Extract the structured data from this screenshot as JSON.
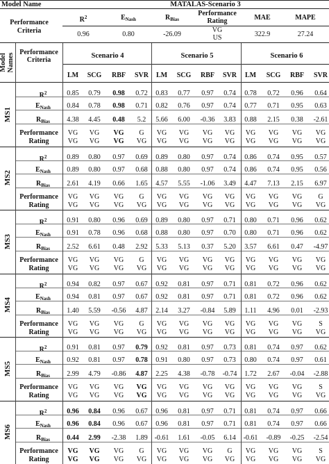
{
  "top": {
    "model_name_label": "Model Name",
    "model_name_value": "MATALAS-Scenario 3",
    "criteria_label_line1": "Performance",
    "criteria_label_line2": "Criteria",
    "headers": [
      {
        "main": "R",
        "sup": "2",
        "sub": ""
      },
      {
        "main": "E",
        "sup": "",
        "sub": "Nash"
      },
      {
        "main": "R",
        "sup": "",
        "sub": "Bias"
      },
      {
        "main": "Performance",
        "sup": "",
        "sub": "",
        "line2": "Rating"
      },
      {
        "main": "MAE",
        "sup": "",
        "sub": ""
      },
      {
        "main": "MAPE",
        "sup": "",
        "sub": ""
      }
    ],
    "values": [
      "0.96",
      "0.80",
      "-26.09",
      "VG",
      "322.9",
      "27.24"
    ],
    "rating_line2": "US"
  },
  "main_header": {
    "model_names_line1": "Model",
    "model_names_line2": "Names",
    "criteria_line1": "Performance",
    "criteria_line2": "Criteria",
    "scenarios": [
      "Scenario 4",
      "Scenario 5",
      "Scenario 6"
    ],
    "methods": [
      "LM",
      "SCG",
      "RBF",
      "SVR",
      "LM",
      "SCG",
      "RBF",
      "SVR",
      "LM",
      "SCG",
      "RBF",
      "SVR"
    ]
  },
  "metric_labels": {
    "r2": {
      "main": "R",
      "sup": "2"
    },
    "enash": {
      "main": "E",
      "sub": "Nash"
    },
    "rbias": {
      "main": "R",
      "sub": "Bias"
    },
    "rating_line1": "Performance",
    "rating_line2": "Rating"
  },
  "models": [
    {
      "name": "MS1",
      "r2": [
        "0.85",
        "0.79",
        "0.98",
        "0.72",
        "0.83",
        "0.77",
        "0.97",
        "0.74",
        "0.78",
        "0.72",
        "0.96",
        "0.64"
      ],
      "enash": [
        "0.84",
        "0.78",
        "0.98",
        "0.71",
        "0.82",
        "0.76",
        "0.97",
        "0.74",
        "0.77",
        "0.71",
        "0.95",
        "0.63"
      ],
      "rbias": [
        "4.38",
        "4.45",
        "0.48",
        "5.2",
        "5.66",
        "6.00",
        "-0.36",
        "3.83",
        "0.88",
        "2.15",
        "0.38",
        "-2.61"
      ],
      "rating1": [
        "VG",
        "VG",
        "VG",
        "G",
        "VG",
        "VG",
        "VG",
        "VG",
        "VG",
        "VG",
        "VG",
        "VG"
      ],
      "rating2": [
        "VG",
        "VG",
        "VG",
        "VG",
        "VG",
        "VG",
        "VG",
        "VG",
        "VG",
        "VG",
        "VG",
        "VG"
      ],
      "bold": {
        "r2": [
          2
        ],
        "enash": [
          2
        ],
        "rbias": [
          2
        ],
        "rating1": [
          2
        ],
        "rating2": [
          2
        ]
      }
    },
    {
      "name": "MS2",
      "r2": [
        "0.89",
        "0.80",
        "0.97",
        "0.69",
        "0.89",
        "0.80",
        "0.97",
        "0.74",
        "0.86",
        "0.74",
        "0.95",
        "0.57"
      ],
      "enash": [
        "0.89",
        "0.80",
        "0.97",
        "0.68",
        "0.88",
        "0.80",
        "0.97",
        "0.74",
        "0.86",
        "0.74",
        "0.95",
        "0.56"
      ],
      "rbias": [
        "2.61",
        "4.19",
        "0.66",
        "1.65",
        "4.57",
        "5.55",
        "-1.06",
        "3.49",
        "4.47",
        "7.13",
        "2.15",
        "6.97"
      ],
      "rating1": [
        "VG",
        "VG",
        "VG",
        "G",
        "VG",
        "VG",
        "VG",
        "VG",
        "VG",
        "VG",
        "VG",
        "G"
      ],
      "rating2": [
        "VG",
        "VG",
        "VG",
        "VG",
        "VG",
        "VG",
        "VG",
        "VG",
        "VG",
        "VG",
        "VG",
        "VG"
      ],
      "bold": {}
    },
    {
      "name": "MS3",
      "r2": [
        "0.91",
        "0.80",
        "0.96",
        "0.69",
        "0.89",
        "0.80",
        "0.97",
        "0.71",
        "0.80",
        "0.71",
        "0.96",
        "0.62"
      ],
      "enash": [
        "0.91",
        "0.78",
        "0.96",
        "0.68",
        "0.88",
        "0.80",
        "0.97",
        "0.70",
        "0.80",
        "0.71",
        "0.96",
        "0.62"
      ],
      "rbias": [
        "2.52",
        "6.61",
        "0.48",
        "2.92",
        "5.33",
        "5.13",
        "0.37",
        "5.20",
        "3.57",
        "6.61",
        "0.47",
        "-4.97"
      ],
      "rating1": [
        "VG",
        "VG",
        "VG",
        "G",
        "VG",
        "VG",
        "VG",
        "VG",
        "VG",
        "VG",
        "VG",
        "VG"
      ],
      "rating2": [
        "VG",
        "VG",
        "VG",
        "VG",
        "VG",
        "VG",
        "VG",
        "VG",
        "VG",
        "VG",
        "VG",
        "VG"
      ],
      "bold": {}
    },
    {
      "name": "MS4",
      "r2": [
        "0.94",
        "0.82",
        "0.97",
        "0.67",
        "0.92",
        "0.81",
        "0.97",
        "0.71",
        "0.81",
        "0.72",
        "0.96",
        "0.62"
      ],
      "enash": [
        "0.94",
        "0.81",
        "0.97",
        "0.67",
        "0.92",
        "0.81",
        "0.97",
        "0.71",
        "0.81",
        "0.72",
        "0.96",
        "0.62"
      ],
      "rbias": [
        "1.40",
        "5.59",
        "-0.56",
        "4.87",
        "2.14",
        "3.27",
        "-0.84",
        "5.89",
        "1.11",
        "4.96",
        "0.01",
        "-2.93"
      ],
      "rating1": [
        "VG",
        "VG",
        "VG",
        "G",
        "VG",
        "VG",
        "VG",
        "VG",
        "VG",
        "VG",
        "VG",
        "S"
      ],
      "rating2": [
        "VG",
        "VG",
        "VG",
        "VG",
        "VG",
        "VG",
        "VG",
        "VG",
        "VG",
        "VG",
        "VG",
        "VG"
      ],
      "bold": {}
    },
    {
      "name": "MS5",
      "r2": [
        "0.91",
        "0.81",
        "0.97",
        "0.79",
        "0.92",
        "0.81",
        "0.97",
        "0.73",
        "0.81",
        "0.74",
        "0.97",
        "0.62"
      ],
      "enash": [
        "0.92",
        "0.81",
        "0.97",
        "0.78",
        "0.91",
        "0.80",
        "0.97",
        "0.73",
        "0.80",
        "0.74",
        "0.97",
        "0.61"
      ],
      "rbias": [
        "2.99",
        "4.79",
        "-0.86",
        "4.87",
        "2.25",
        "4.38",
        "-0.78",
        "-0.74",
        "1.72",
        "2.67",
        "-0.04",
        "-2.88"
      ],
      "rating1": [
        "VG",
        "VG",
        "VG",
        "VG",
        "VG",
        "VG",
        "VG",
        "VG",
        "VG",
        "VG",
        "VG",
        "S"
      ],
      "rating2": [
        "VG",
        "VG",
        "VG",
        "VG",
        "VG",
        "VG",
        "VG",
        "VG",
        "VG",
        "VG",
        "VG",
        "VG"
      ],
      "bold": {
        "r2": [
          3
        ],
        "enash": [
          3
        ],
        "rbias": [
          3
        ],
        "rating1": [
          3
        ],
        "rating2": [
          3
        ]
      }
    },
    {
      "name": "MS6",
      "r2": [
        "0.96",
        "0.84",
        "0.96",
        "0.67",
        "0.96",
        "0.81",
        "0.97",
        "0.71",
        "0.81",
        "0.74",
        "0.97",
        "0.66"
      ],
      "enash": [
        "0.96",
        "0.84",
        "0.96",
        "0.67",
        "0.96",
        "0.81",
        "0.97",
        "0.71",
        "0.81",
        "0.74",
        "0.97",
        "0.66"
      ],
      "rbias": [
        "0.44",
        "2.99",
        "-2.38",
        "1.89",
        "-0.61",
        "1.61",
        "-0.05",
        "6.14",
        "-0.61",
        "-0.89",
        "-0.25",
        "-2.54"
      ],
      "rating1": [
        "VG",
        "VG",
        "VG",
        "G",
        "VG",
        "VG",
        "VG",
        "G",
        "VG",
        "VG",
        "VG",
        "S"
      ],
      "rating2": [
        "VG",
        "VG",
        "VG",
        "VG",
        "VG",
        "VG",
        "VG",
        "VG",
        "VG",
        "VG",
        "VG",
        "VG"
      ],
      "bold": {
        "r2": [
          0,
          1
        ],
        "enash": [
          0,
          1
        ],
        "rbias": [
          0,
          1
        ],
        "rating1": [
          0,
          1
        ],
        "rating2": [
          0,
          1
        ]
      }
    }
  ]
}
